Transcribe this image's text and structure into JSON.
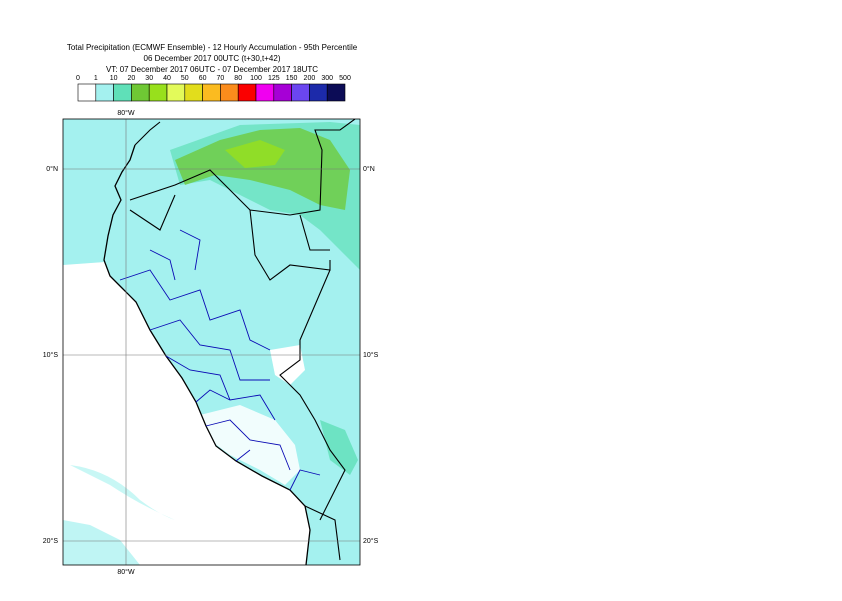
{
  "header": {
    "title_lines": [
      "Total Precipitation (ECMWF Ensemble) - 12 Hourly Accumulation - 95th Percentile",
      "06 December 2017 00UTC (t+30,t+42)",
      "VT: 07 December 2017 06UTC - 07 December 2017 18UTC"
    ]
  },
  "legend": {
    "labels": [
      "0",
      "1",
      "10",
      "20",
      "30",
      "40",
      "50",
      "60",
      "70",
      "80",
      "100",
      "125",
      "150",
      "200",
      "300",
      "500"
    ],
    "colors": [
      "#ffffff",
      "#a4f1ef",
      "#5fe0b8",
      "#6fc834",
      "#98e01c",
      "#e3fa5a",
      "#e2dd1c",
      "#fbbb20",
      "#fb8c1c",
      "#fb0000",
      "#f000f0",
      "#a600d6",
      "#6b46f0",
      "#1c2aaa",
      "#0c0c56"
    ]
  },
  "grid": {
    "lon_labels": [
      "80°W"
    ],
    "lat_labels": [
      "0°N",
      "10°S",
      "20°S"
    ]
  }
}
